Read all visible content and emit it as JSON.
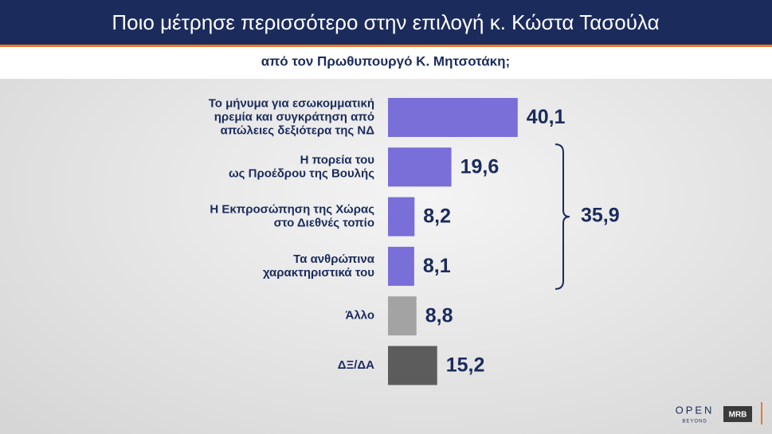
{
  "chart_data": {
    "type": "hbar",
    "title": "Ποιο μέτρησε περισσότερο στην επιλογή κ. Κώστα Τασούλα",
    "subtitle": "από τον Πρωθυπουργό Κ. Μητσοτάκη;",
    "categories": [
      [
        "Το μήνυμα για εσωκομματική",
        "ηρεμία και συγκράτηση από",
        "απώλειες δεξιότερα της ΝΔ"
      ],
      [
        "Η πορεία του",
        "ως Προέδρου της Βουλής"
      ],
      [
        "Η Εκπροσώπηση της Χώρας",
        "στο Διεθνές τοπίο"
      ],
      [
        "Τα ανθρώπινα",
        "χαρακτηριστικά του"
      ],
      [
        "Άλλο"
      ],
      [
        "ΔΞ/ΔΑ"
      ]
    ],
    "values": [
      40.1,
      19.6,
      8.2,
      8.1,
      8.8,
      15.2
    ],
    "value_labels": [
      "40,1",
      "19,6",
      "8,2",
      "8,1",
      "8,8",
      "15,2"
    ],
    "colors": [
      "#7a6fd8",
      "#7a6fd8",
      "#7a6fd8",
      "#7a6fd8",
      "#a3a3a3",
      "#5c5c5c"
    ],
    "xlim": [
      0,
      100
    ],
    "group_total": {
      "value": 35.9,
      "label": "35,9",
      "from": 1,
      "to": 3
    },
    "logos": [
      "OPEN",
      "BEYOND",
      "MRB"
    ]
  }
}
